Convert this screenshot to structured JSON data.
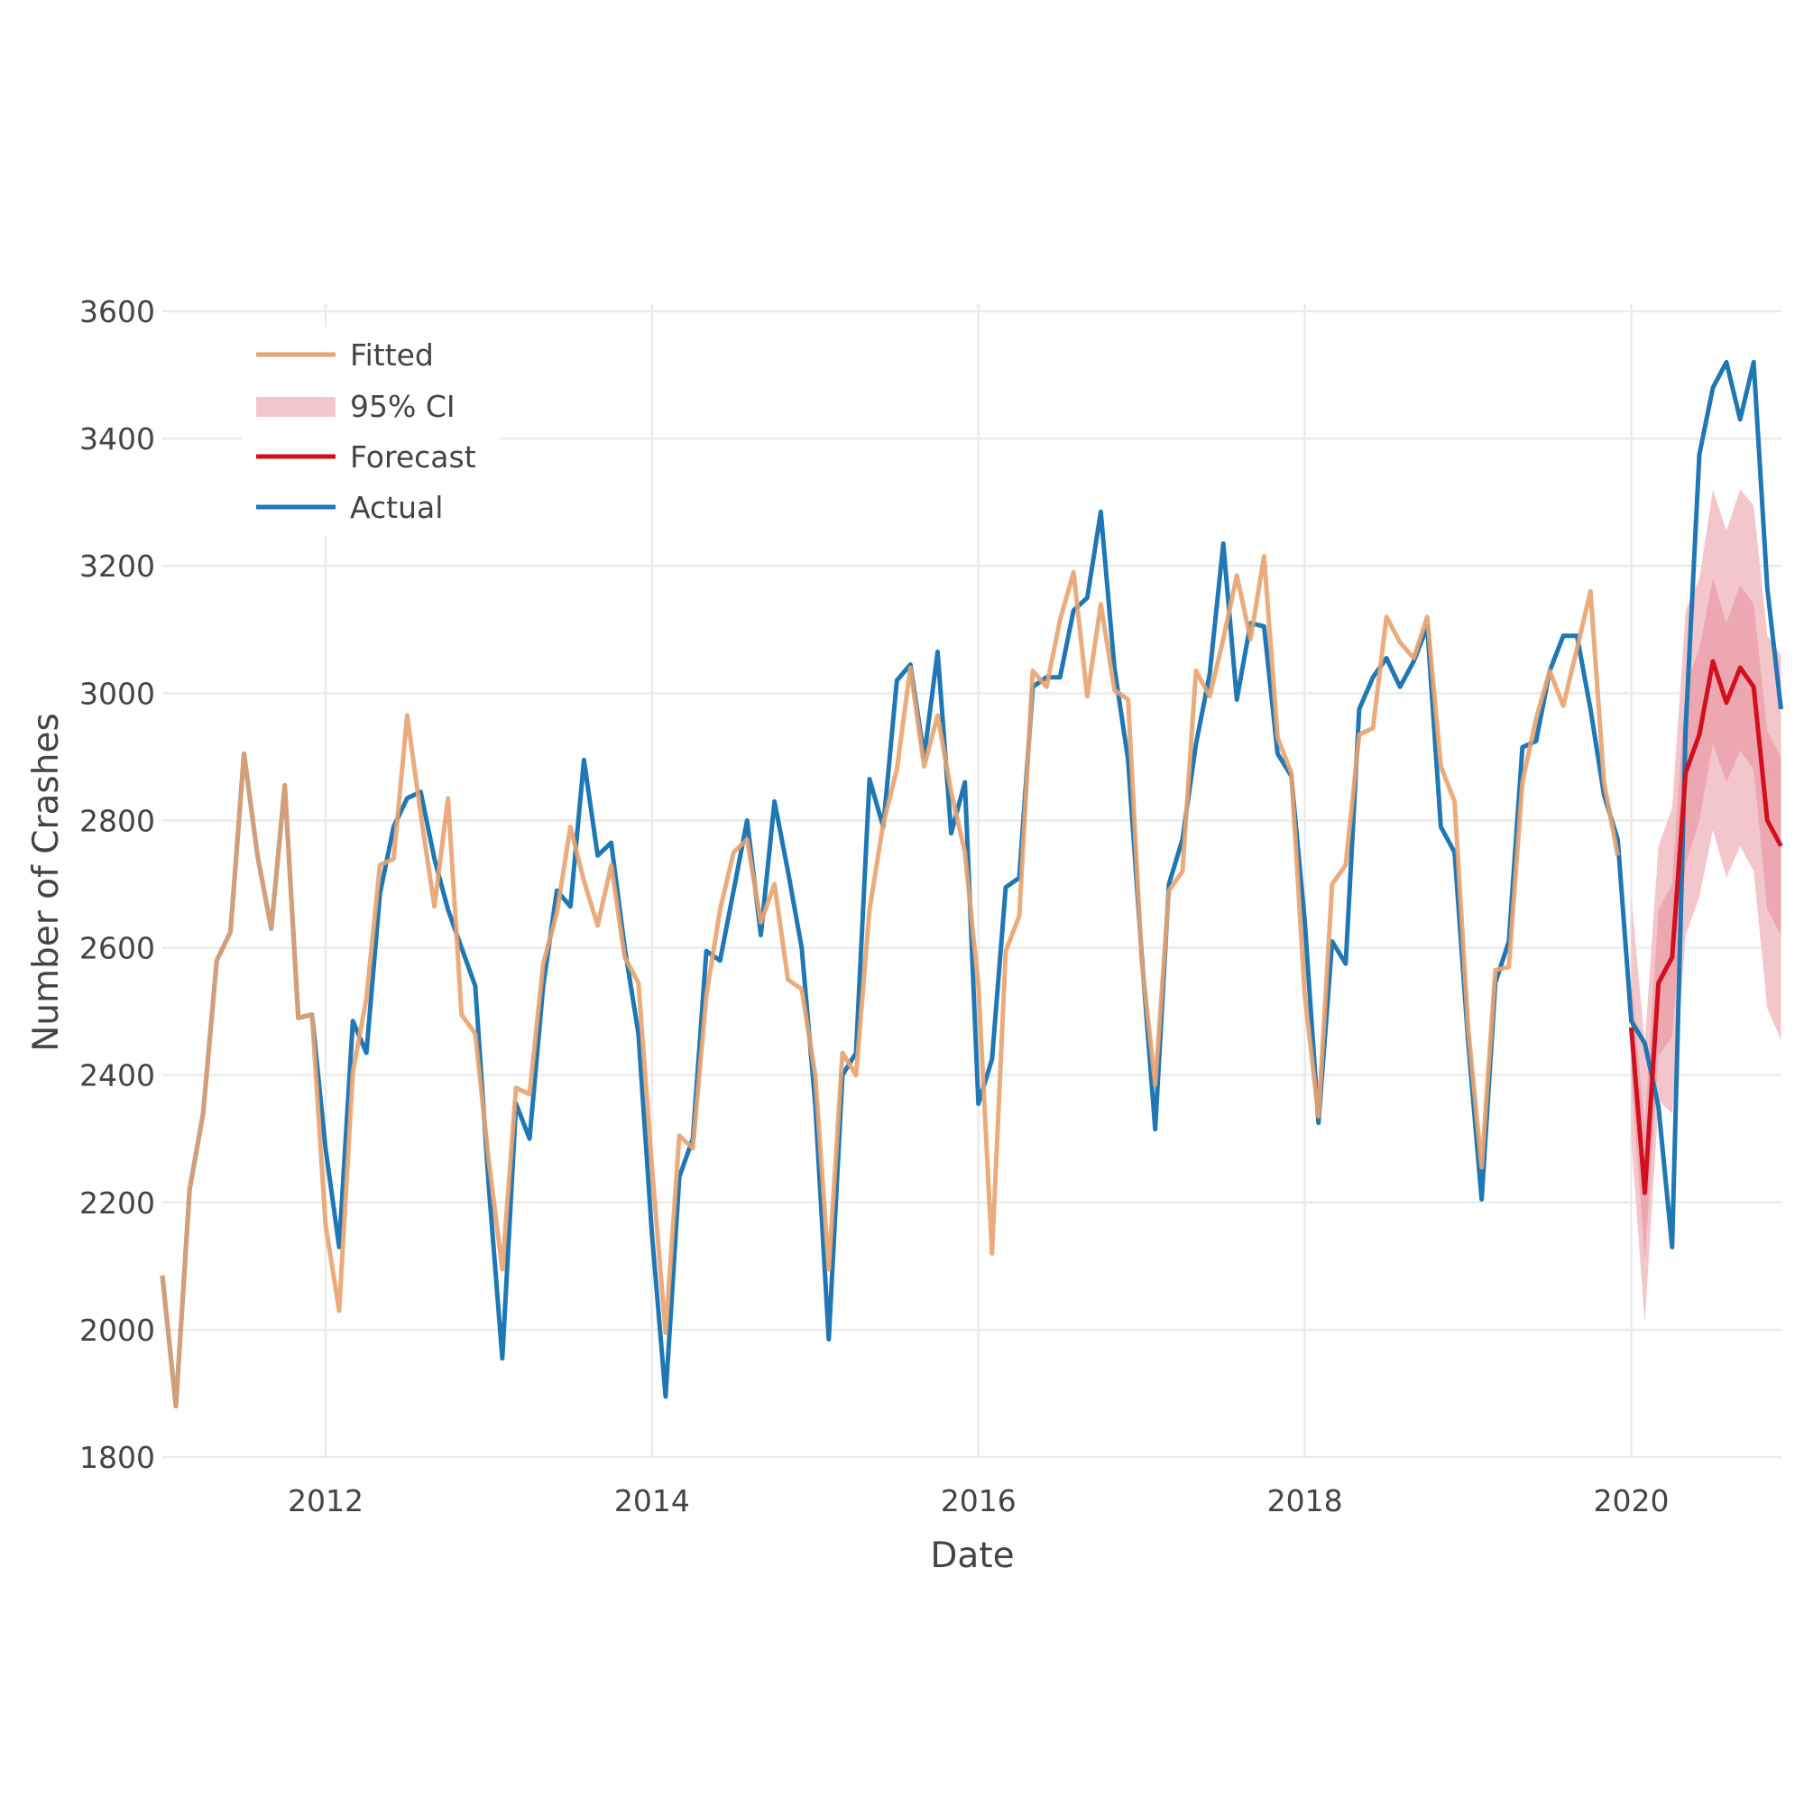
{
  "chart_data": {
    "type": "line",
    "title": "",
    "xlabel": "Date",
    "ylabel": "Number of Crashes",
    "x_unit": "year",
    "xlim": [
      2011.0,
      2020.92
    ],
    "ylim": [
      1800,
      3600
    ],
    "x_ticks": [
      {
        "value": 2012,
        "label": "2012"
      },
      {
        "value": 2014,
        "label": "2014"
      },
      {
        "value": 2016,
        "label": "2016"
      },
      {
        "value": 2018,
        "label": "2018"
      },
      {
        "value": 2020,
        "label": "2020"
      }
    ],
    "y_ticks": [
      {
        "value": 1800,
        "label": "1800"
      },
      {
        "value": 2000,
        "label": "2000"
      },
      {
        "value": 2200,
        "label": "2200"
      },
      {
        "value": 2400,
        "label": "2400"
      },
      {
        "value": 2600,
        "label": "2600"
      },
      {
        "value": 2800,
        "label": "2800"
      },
      {
        "value": 3000,
        "label": "3000"
      },
      {
        "value": 3200,
        "label": "3200"
      },
      {
        "value": 3400,
        "label": "3400"
      },
      {
        "value": 3600,
        "label": "3600"
      }
    ],
    "grid": true,
    "legend": {
      "position": "top-left",
      "items": [
        {
          "label": "Fitted",
          "kind": "line",
          "color": "#e8a26f"
        },
        {
          "label": "95% CI",
          "kind": "band",
          "color": "#f3c6cc"
        },
        {
          "label": "Forecast",
          "kind": "line",
          "color": "#d0101e"
        },
        {
          "label": "Actual",
          "kind": "line",
          "color": "#1f77b4"
        }
      ]
    },
    "actual": {
      "name": "Actual",
      "color": "#1f77b4",
      "x": [
        2011.0,
        2011.083,
        2011.167,
        2011.25,
        2011.333,
        2011.417,
        2011.5,
        2011.583,
        2011.667,
        2011.75,
        2011.833,
        2011.917,
        2012.0,
        2012.083,
        2012.167,
        2012.25,
        2012.333,
        2012.417,
        2012.5,
        2012.583,
        2012.667,
        2012.75,
        2012.833,
        2012.917,
        2013.0,
        2013.083,
        2013.167,
        2013.25,
        2013.333,
        2013.417,
        2013.5,
        2013.583,
        2013.667,
        2013.75,
        2013.833,
        2013.917,
        2014.0,
        2014.083,
        2014.167,
        2014.25,
        2014.333,
        2014.417,
        2014.5,
        2014.583,
        2014.667,
        2014.75,
        2014.833,
        2014.917,
        2015.0,
        2015.083,
        2015.167,
        2015.25,
        2015.333,
        2015.417,
        2015.5,
        2015.583,
        2015.667,
        2015.75,
        2015.833,
        2015.917,
        2016.0,
        2016.083,
        2016.167,
        2016.25,
        2016.333,
        2016.417,
        2016.5,
        2016.583,
        2016.667,
        2016.75,
        2016.833,
        2016.917,
        2017.0,
        2017.083,
        2017.167,
        2017.25,
        2017.333,
        2017.417,
        2017.5,
        2017.583,
        2017.667,
        2017.75,
        2017.833,
        2017.917,
        2018.0,
        2018.083,
        2018.167,
        2018.25,
        2018.333,
        2018.417,
        2018.5,
        2018.583,
        2018.667,
        2018.75,
        2018.833,
        2018.917,
        2019.0,
        2019.083,
        2019.167,
        2019.25,
        2019.333,
        2019.417,
        2019.5,
        2019.583,
        2019.667,
        2019.75,
        2019.833,
        2019.917,
        2020.0,
        2020.083,
        2020.167,
        2020.25,
        2020.333,
        2020.417,
        2020.5,
        2020.583,
        2020.667,
        2020.75,
        2020.833,
        2020.917
      ],
      "y": [
        2085,
        1880,
        2220,
        2340,
        2580,
        2625,
        2905,
        2745,
        2630,
        2855,
        2490,
        2495,
        2285,
        2130,
        2485,
        2435,
        2685,
        2790,
        2835,
        2845,
        2740,
        2660,
        2600,
        2540,
        2225,
        1955,
        2355,
        2300,
        2540,
        2690,
        2665,
        2895,
        2745,
        2765,
        2600,
        2465,
        2150,
        1895,
        2240,
        2300,
        2595,
        2580,
        2690,
        2800,
        2620,
        2830,
        2720,
        2600,
        2355,
        1985,
        2400,
        2435,
        2865,
        2790,
        3020,
        3045,
        2900,
        3065,
        2780,
        2860,
        2355,
        2425,
        2695,
        2710,
        3010,
        3025,
        3025,
        3130,
        3150,
        3285,
        3040,
        2895,
        2590,
        2315,
        2700,
        2770,
        2920,
        3030,
        3235,
        2990,
        3110,
        3105,
        2905,
        2870,
        2640,
        2325,
        2610,
        2575,
        2975,
        3025,
        3055,
        3010,
        3050,
        3105,
        2790,
        2750,
        2455,
        2205,
        2545,
        2610,
        2915,
        2925,
        3035,
        3090,
        3090,
        2975,
        2840,
        2770,
        2485,
        2450,
        2350,
        2130,
        2945,
        3375,
        3480,
        3520,
        3430,
        3520,
        3165,
        2975
      ]
    },
    "fitted": {
      "name": "Fitted",
      "color": "#e8a26f",
      "x": [
        2011.0,
        2011.083,
        2011.167,
        2011.25,
        2011.333,
        2011.417,
        2011.5,
        2011.583,
        2011.667,
        2011.75,
        2011.833,
        2011.917,
        2012.0,
        2012.083,
        2012.167,
        2012.25,
        2012.333,
        2012.417,
        2012.5,
        2012.583,
        2012.667,
        2012.75,
        2012.833,
        2012.917,
        2013.0,
        2013.083,
        2013.167,
        2013.25,
        2013.333,
        2013.417,
        2013.5,
        2013.583,
        2013.667,
        2013.75,
        2013.833,
        2013.917,
        2014.0,
        2014.083,
        2014.167,
        2014.25,
        2014.333,
        2014.417,
        2014.5,
        2014.583,
        2014.667,
        2014.75,
        2014.833,
        2014.917,
        2015.0,
        2015.083,
        2015.167,
        2015.25,
        2015.333,
        2015.417,
        2015.5,
        2015.583,
        2015.667,
        2015.75,
        2015.833,
        2015.917,
        2016.0,
        2016.083,
        2016.167,
        2016.25,
        2016.333,
        2016.417,
        2016.5,
        2016.583,
        2016.667,
        2016.75,
        2016.833,
        2016.917,
        2017.0,
        2017.083,
        2017.167,
        2017.25,
        2017.333,
        2017.417,
        2017.5,
        2017.583,
        2017.667,
        2017.75,
        2017.833,
        2017.917,
        2018.0,
        2018.083,
        2018.167,
        2018.25,
        2018.333,
        2018.417,
        2018.5,
        2018.583,
        2018.667,
        2018.75,
        2018.833,
        2018.917,
        2019.0,
        2019.083,
        2019.167,
        2019.25,
        2019.333,
        2019.417,
        2019.5,
        2019.583,
        2019.667,
        2019.75,
        2019.833,
        2019.917
      ],
      "y": [
        2085,
        1880,
        2220,
        2340,
        2580,
        2625,
        2905,
        2745,
        2630,
        2855,
        2490,
        2495,
        2165,
        2030,
        2405,
        2520,
        2730,
        2740,
        2965,
        2810,
        2665,
        2835,
        2495,
        2465,
        2265,
        2095,
        2380,
        2370,
        2575,
        2655,
        2790,
        2705,
        2635,
        2730,
        2585,
        2545,
        2255,
        1995,
        2305,
        2285,
        2525,
        2660,
        2750,
        2770,
        2640,
        2700,
        2550,
        2535,
        2400,
        2095,
        2435,
        2400,
        2660,
        2795,
        2880,
        3040,
        2885,
        2965,
        2845,
        2750,
        2540,
        2120,
        2595,
        2650,
        3035,
        3010,
        3115,
        3190,
        2995,
        3140,
        3005,
        2990,
        2580,
        2385,
        2690,
        2720,
        3035,
        2995,
        3085,
        3185,
        3085,
        3215,
        2930,
        2875,
        2525,
        2335,
        2700,
        2730,
        2935,
        2945,
        3120,
        3080,
        3055,
        3120,
        2885,
        2830,
        2475,
        2255,
        2565,
        2570,
        2860,
        2960,
        3035,
        2980,
        3070,
        3160,
        2860,
        2745
      ]
    },
    "forecast": {
      "name": "Forecast",
      "color": "#d0101e",
      "x": [
        2020.0,
        2020.083,
        2020.167,
        2020.25,
        2020.333,
        2020.417,
        2020.5,
        2020.583,
        2020.667,
        2020.75,
        2020.833,
        2020.917
      ],
      "y": [
        2475,
        2215,
        2545,
        2585,
        2875,
        2935,
        3050,
        2985,
        3040,
        3010,
        2800,
        2760
      ],
      "ci80_lower": [
        2400,
        2110,
        2430,
        2460,
        2730,
        2800,
        2920,
        2860,
        2910,
        2880,
        2660,
        2620
      ],
      "ci80_upper": [
        2550,
        2320,
        2660,
        2700,
        3010,
        3070,
        3180,
        3110,
        3170,
        3140,
        2940,
        2900
      ],
      "ci95_lower": [
        2300,
        2010,
        2360,
        2340,
        2620,
        2680,
        2785,
        2710,
        2760,
        2720,
        2505,
        2455
      ],
      "ci95_upper": [
        2680,
        2450,
        2760,
        2820,
        3130,
        3180,
        3320,
        3255,
        3320,
        3295,
        3090,
        3060
      ],
      "ci_color": "#f3c6cc",
      "ci_inner_color": "#eba1ab"
    }
  }
}
